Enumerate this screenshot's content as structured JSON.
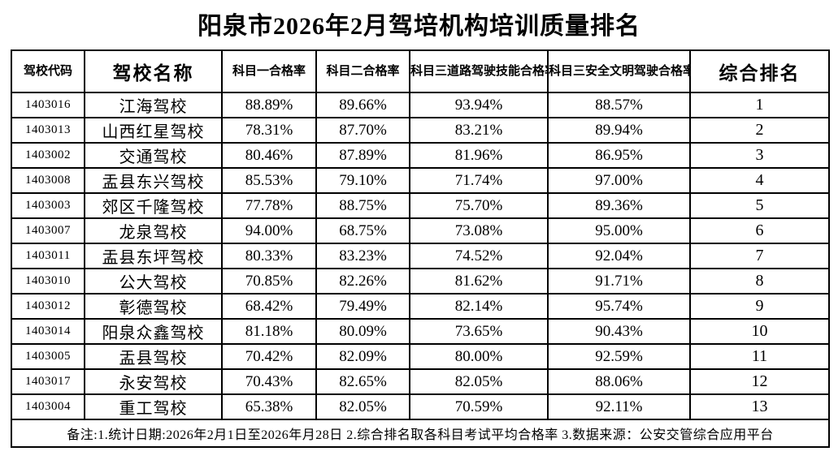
{
  "title": "阳泉市2026年2月驾培机构培训质量排名",
  "table": {
    "headers": [
      "驾校代码",
      "驾校名称",
      "科目一合格率",
      "科目二合格率",
      "科目三道路驾驶技能合格率",
      "科目三安全文明驾驶合格率",
      "综合排名"
    ],
    "rows": [
      {
        "code": "1403016",
        "name": "江海驾校",
        "s1": "88.89%",
        "s2": "89.66%",
        "s3_road": "93.94%",
        "s3_safe": "88.57%",
        "rank": "1"
      },
      {
        "code": "1403013",
        "name": "山西红星驾校",
        "s1": "78.31%",
        "s2": "87.70%",
        "s3_road": "83.21%",
        "s3_safe": "89.94%",
        "rank": "2"
      },
      {
        "code": "1403002",
        "name": "交通驾校",
        "s1": "80.46%",
        "s2": "87.89%",
        "s3_road": "81.96%",
        "s3_safe": "86.95%",
        "rank": "3"
      },
      {
        "code": "1403008",
        "name": "盂县东兴驾校",
        "s1": "85.53%",
        "s2": "79.10%",
        "s3_road": "71.74%",
        "s3_safe": "97.00%",
        "rank": "4"
      },
      {
        "code": "1403003",
        "name": "郊区千隆驾校",
        "s1": "77.78%",
        "s2": "88.75%",
        "s3_road": "75.70%",
        "s3_safe": "89.36%",
        "rank": "5"
      },
      {
        "code": "1403007",
        "name": "龙泉驾校",
        "s1": "94.00%",
        "s2": "68.75%",
        "s3_road": "73.08%",
        "s3_safe": "95.00%",
        "rank": "6"
      },
      {
        "code": "1403011",
        "name": "盂县东坪驾校",
        "s1": "80.33%",
        "s2": "83.23%",
        "s3_road": "74.52%",
        "s3_safe": "92.04%",
        "rank": "7"
      },
      {
        "code": "1403010",
        "name": "公大驾校",
        "s1": "70.85%",
        "s2": "82.26%",
        "s3_road": "81.62%",
        "s3_safe": "91.71%",
        "rank": "8"
      },
      {
        "code": "1403012",
        "name": "彰德驾校",
        "s1": "68.42%",
        "s2": "79.49%",
        "s3_road": "82.14%",
        "s3_safe": "95.74%",
        "rank": "9"
      },
      {
        "code": "1403014",
        "name": "阳泉众鑫驾校",
        "s1": "81.18%",
        "s2": "80.09%",
        "s3_road": "73.65%",
        "s3_safe": "90.43%",
        "rank": "10"
      },
      {
        "code": "1403005",
        "name": "盂县驾校",
        "s1": "70.42%",
        "s2": "82.09%",
        "s3_road": "80.00%",
        "s3_safe": "92.59%",
        "rank": "11"
      },
      {
        "code": "1403017",
        "name": "永安驾校",
        "s1": "70.43%",
        "s2": "82.65%",
        "s3_road": "82.05%",
        "s3_safe": "88.06%",
        "rank": "12"
      },
      {
        "code": "1403004",
        "name": "重工驾校",
        "s1": "65.38%",
        "s2": "82.05%",
        "s3_road": "70.59%",
        "s3_safe": "92.11%",
        "rank": "13"
      }
    ]
  },
  "footer_note": "备注:1.统计日期:2026年2月1日至2026年月28日  2.综合排名取各科目考试平均合格率   3.数据来源：公安交管综合应用平台",
  "colors": {
    "background": "#ffffff",
    "text": "#000000",
    "border": "#000000"
  }
}
